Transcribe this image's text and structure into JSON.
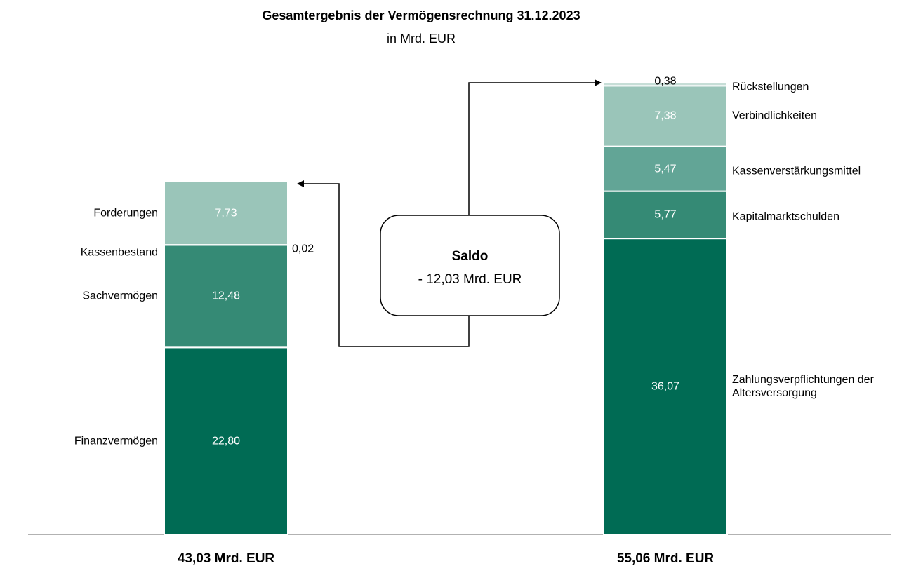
{
  "chart_data": {
    "type": "stacked_bar",
    "title": "Gesamtergebnis der Vermögensrechnung  31.12.2023",
    "subtitle": "in Mrd. EUR",
    "annotation": {
      "title": "Saldo",
      "text": "- 12,03 Mrd. EUR"
    },
    "stacks": [
      {
        "total": 43.03,
        "total_label": "43,03 Mrd. EUR",
        "segments": [
          {
            "name": "Finanzvermögen",
            "value": 22.8,
            "value_label": "22,80",
            "color": "#006b54"
          },
          {
            "name": "Sachvermögen",
            "value": 12.48,
            "value_label": "12,48",
            "color": "#358a75"
          },
          {
            "name": "Kassenbestand",
            "value": 0.02,
            "value_label": "0,02",
            "color": "#62a596"
          },
          {
            "name": "Forderungen",
            "value": 7.73,
            "value_label": "7,73",
            "color": "#9ac5b9"
          }
        ]
      },
      {
        "total": 55.06,
        "total_label": "55,06 Mrd. EUR",
        "segments": [
          {
            "name": "Zahlungsverpflichtungen der Altersversorgung",
            "value": 36.07,
            "value_label": "36,07",
            "color": "#006b54"
          },
          {
            "name": "Kapitalmarktschulden",
            "value": 5.77,
            "value_label": "5,77",
            "color": "#358a75"
          },
          {
            "name": "Kassenverstärkungsmittel",
            "value": 5.47,
            "value_label": "5,47",
            "color": "#62a596"
          },
          {
            "name": "Verbindlichkeiten",
            "value": 7.38,
            "value_label": "7,38",
            "color": "#9ac5b9"
          },
          {
            "name": "Rückstellungen",
            "value": 0.38,
            "value_label": "0,38",
            "color": "#c7ded7"
          }
        ]
      }
    ]
  }
}
